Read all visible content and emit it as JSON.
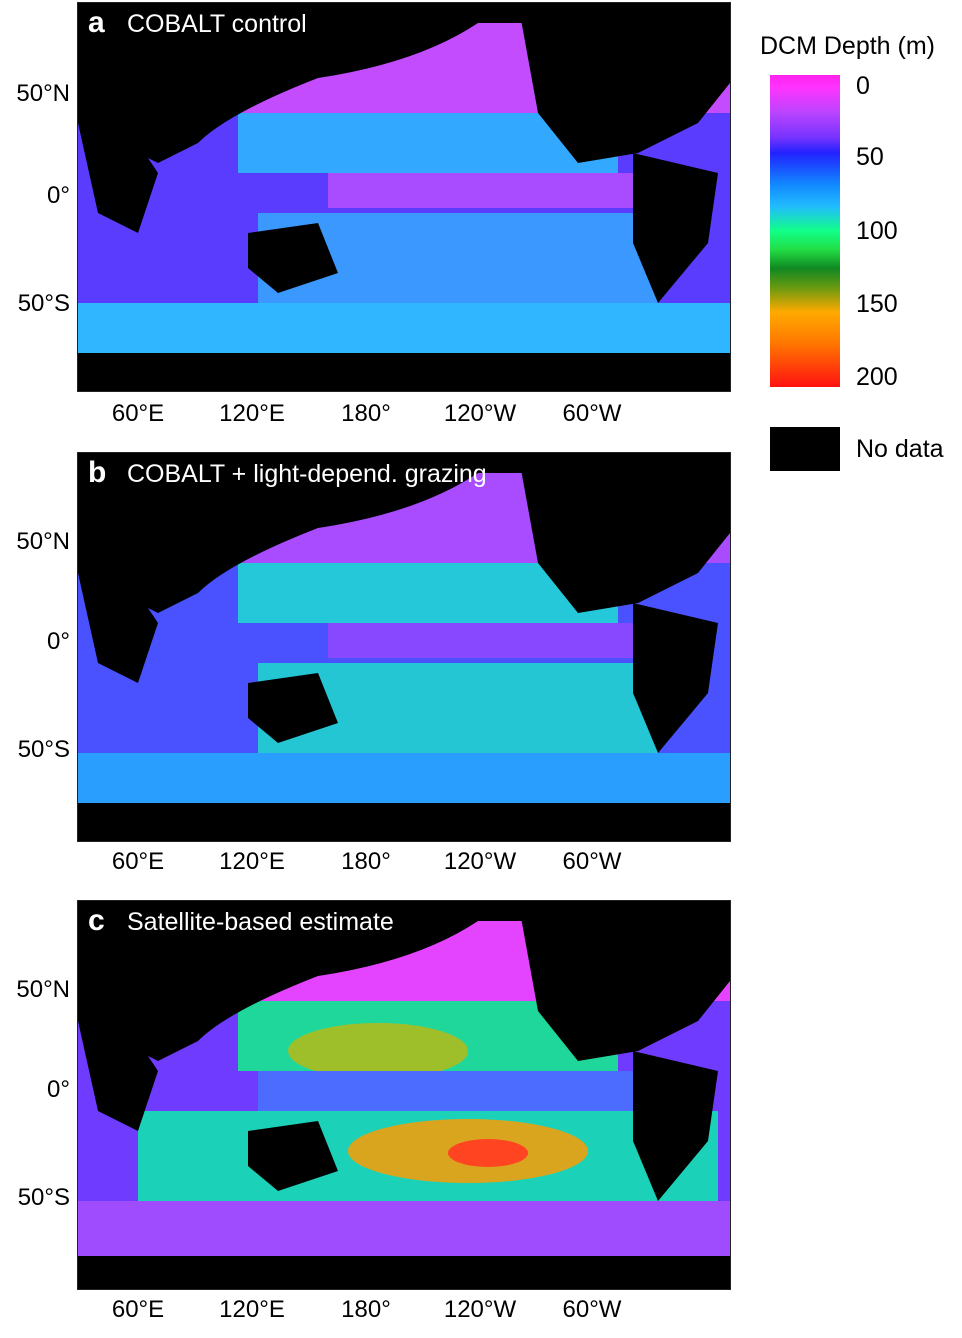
{
  "panels": [
    {
      "letter": "a",
      "title": "COBALT control"
    },
    {
      "letter": "b",
      "title": "COBALT + light-depend. grazing"
    },
    {
      "letter": "c",
      "title": "Satellite-based estimate"
    }
  ],
  "lat_labels": [
    "50°N",
    "0°",
    "50°S"
  ],
  "lon_labels": [
    "60°E",
    "120°E",
    "180°",
    "120°W",
    "60°W"
  ],
  "legend": {
    "title": "DCM Depth (m)",
    "ticks": [
      "0",
      "50",
      "100",
      "150",
      "200"
    ],
    "no_data": "No data",
    "colors": {
      "shallow": "#ff22ee",
      "mid": "#1188ff",
      "green": "#11ff88",
      "deep": "#ff1111",
      "no_data": "#000000"
    }
  }
}
